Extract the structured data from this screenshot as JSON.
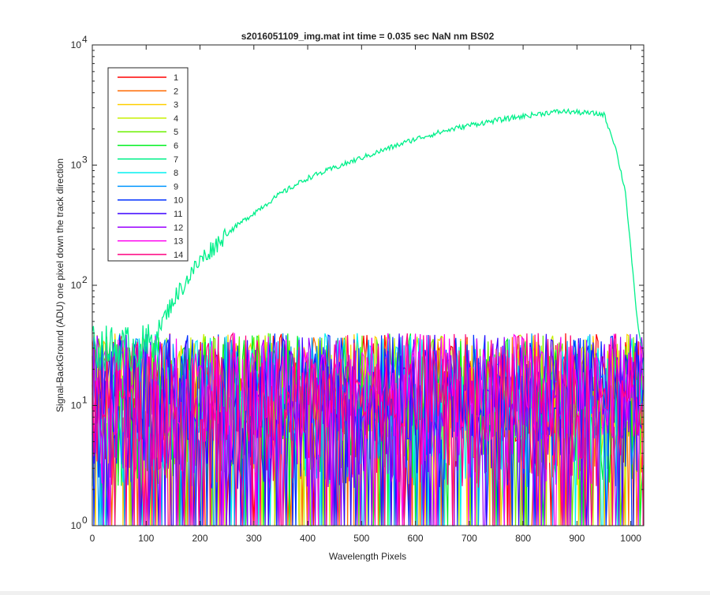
{
  "chart_data": {
    "type": "line",
    "title": "s2016051109_img.mat int time = 0.035 sec  NaN nm BS02",
    "xlabel": "Wavelength Pixels",
    "ylabel": "Signal-BackGround (ADU) one pixel down the track direction",
    "xlim": [
      0,
      1024
    ],
    "ylim": [
      1,
      10000
    ],
    "yscale": "log",
    "xticks": [
      "0",
      "100",
      "200",
      "300",
      "400",
      "500",
      "600",
      "700",
      "800",
      "900",
      "1000"
    ],
    "xtick_values": [
      0,
      100,
      200,
      300,
      400,
      500,
      600,
      700,
      800,
      900,
      1000
    ],
    "yticks": [
      {
        "value": 1,
        "base": "10",
        "exp": "0"
      },
      {
        "value": 10,
        "base": "10",
        "exp": "1"
      },
      {
        "value": 100,
        "base": "10",
        "exp": "2"
      },
      {
        "value": 1000,
        "base": "10",
        "exp": "3"
      },
      {
        "value": 10000,
        "base": "10",
        "exp": "4"
      }
    ],
    "grid": false,
    "legend_position": "top-left",
    "signal_series_index": 6,
    "signal_curve": {
      "x": [
        0,
        100,
        120,
        150,
        200,
        250,
        300,
        350,
        400,
        450,
        500,
        550,
        600,
        650,
        700,
        750,
        800,
        850,
        880,
        900,
        950,
        970,
        990,
        1000,
        1010,
        1020
      ],
      "y": [
        30,
        30,
        40,
        75,
        160,
        270,
        400,
        580,
        780,
        950,
        1150,
        1380,
        1650,
        1900,
        2150,
        2350,
        2550,
        2750,
        2800,
        2750,
        2650,
        1500,
        600,
        200,
        60,
        30
      ]
    },
    "noise_band": {
      "min": 1,
      "max": 40
    },
    "series": [
      {
        "name": "1",
        "color": "#ff0000"
      },
      {
        "name": "2",
        "color": "#ff6a00"
      },
      {
        "name": "3",
        "color": "#ffcf00"
      },
      {
        "name": "4",
        "color": "#c8f000"
      },
      {
        "name": "5",
        "color": "#6bf000"
      },
      {
        "name": "6",
        "color": "#00f020"
      },
      {
        "name": "7",
        "color": "#00f08a"
      },
      {
        "name": "8",
        "color": "#00f0f0"
      },
      {
        "name": "9",
        "color": "#0096ff"
      },
      {
        "name": "10",
        "color": "#0030ff"
      },
      {
        "name": "11",
        "color": "#3a00ff"
      },
      {
        "name": "12",
        "color": "#9a00ff"
      },
      {
        "name": "13",
        "color": "#ff00f0"
      },
      {
        "name": "14",
        "color": "#ff0080"
      }
    ]
  }
}
